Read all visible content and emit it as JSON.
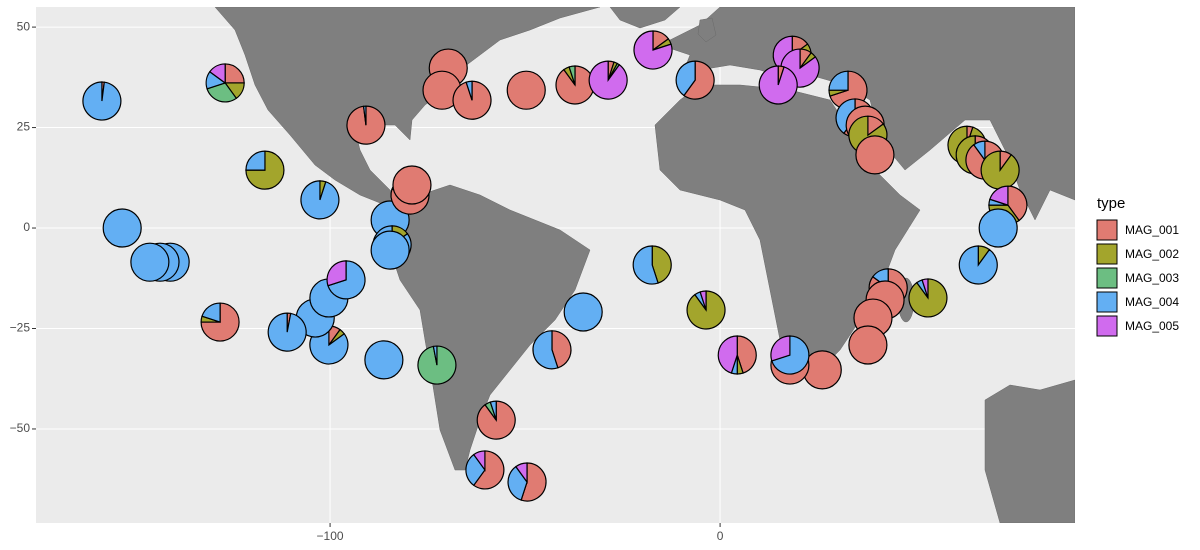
{
  "chart_data": {
    "type": "scatterpie",
    "legend_title": "type",
    "xlim": [
      -175.4,
      91
    ],
    "ylim": [
      -73.4,
      55
    ],
    "xticks": [
      {
        "value": -100,
        "label": "−100"
      },
      0
    ],
    "yticks": [
      {
        "value": -50,
        "label": "−50"
      },
      {
        "value": -25,
        "label": "−25"
      },
      0,
      25,
      50
    ],
    "grid": true,
    "legend": "right",
    "x": [
      -158.5,
      -126.9,
      -116.7,
      -90.8,
      -69.7,
      -71.3,
      -63.6,
      -49.7,
      -37.2,
      -28.7,
      -17.2,
      -6.4,
      18.5,
      20.5,
      14.9,
      32.8,
      34.6,
      37.2,
      37.9,
      39.7,
      63.3,
      65.4,
      67.9,
      71.8,
      73.8,
      71.3,
      66.2,
      53.3,
      43.1,
      42.3,
      39.2,
      37.9,
      26.2,
      17.9,
      17.9,
      4.4,
      -3.6,
      -17.4,
      -35.1,
      -43.1,
      -57.4,
      -60.3,
      -49.5,
      -72.6,
      -86.2,
      -100.3,
      -103.8,
      -100.3,
      -95.9,
      -111,
      -128.2,
      -141,
      -143.6,
      -146.2,
      -153.3,
      -102.6,
      -84.6,
      -84.1,
      -84.6,
      -79.5,
      -79
    ],
    "y": [
      31.6,
      36.1,
      14.4,
      25.6,
      39.8,
      34.3,
      31.8,
      34.3,
      35.6,
      36.8,
      44.3,
      36.8,
      43,
      39.8,
      35.6,
      34.3,
      27.4,
      25.6,
      23.1,
      18.2,
      20.6,
      18.2,
      16.9,
      14.4,
      5.7,
      0,
      -9.2,
      -17.4,
      -14.9,
      -17.9,
      -22.4,
      -29.1,
      -35.3,
      -34.1,
      -31.6,
      -31.6,
      -20.4,
      -9.2,
      -20.9,
      -30.3,
      -47.8,
      -60.2,
      -63.2,
      -34.1,
      -32.8,
      -29.1,
      -22.4,
      -17.4,
      -12.9,
      -25.9,
      -23.4,
      -8.5,
      -8.5,
      -8.5,
      0,
      7,
      2,
      -4.2,
      -5.5,
      8.2,
      10.7
    ],
    "series": [
      {
        "name": "MAG_001",
        "color": "#E07B72",
        "values": [
          2,
          25,
          0,
          98,
          100,
          100,
          95,
          100,
          90,
          5,
          15,
          60,
          15,
          10,
          5,
          70,
          60,
          100,
          15,
          100,
          5,
          20,
          90,
          10,
          40,
          0,
          0,
          0,
          85,
          100,
          100,
          100,
          100,
          100,
          0,
          45,
          0,
          0,
          0,
          45,
          90,
          60,
          55,
          0,
          0,
          10,
          0,
          0,
          0,
          3,
          75,
          0,
          0,
          0,
          0,
          0,
          0,
          0,
          0,
          80,
          100
        ]
      },
      {
        "name": "MAG_002",
        "color": "#A3A52C",
        "values": [
          0,
          15,
          75,
          0,
          0,
          0,
          0,
          0,
          5,
          3,
          5,
          0,
          10,
          5,
          0,
          5,
          0,
          0,
          85,
          0,
          95,
          80,
          0,
          90,
          35,
          0,
          10,
          90,
          0,
          0,
          0,
          0,
          0,
          0,
          0,
          5,
          90,
          45,
          0,
          0,
          0,
          0,
          0,
          0,
          0,
          5,
          0,
          0,
          0,
          0,
          5,
          0,
          0,
          0,
          0,
          5,
          0,
          15,
          0,
          20,
          0
        ]
      },
      {
        "name": "MAG_003",
        "color": "#6CBE82",
        "values": [
          0,
          30,
          0,
          0,
          0,
          0,
          0,
          0,
          5,
          2,
          0,
          0,
          0,
          0,
          0,
          0,
          0,
          0,
          0,
          0,
          0,
          0,
          0,
          0,
          0,
          0,
          0,
          0,
          0,
          0,
          0,
          0,
          0,
          0,
          0,
          0,
          0,
          0,
          0,
          0,
          5,
          0,
          0,
          97,
          0,
          0,
          0,
          0,
          0,
          0,
          0,
          0,
          0,
          0,
          0,
          0,
          0,
          0,
          0,
          0,
          0
        ]
      },
      {
        "name": "MAG_004",
        "color": "#63AFF3",
        "values": [
          98,
          15,
          25,
          2,
          0,
          0,
          5,
          0,
          0,
          0,
          0,
          40,
          5,
          0,
          0,
          25,
          40,
          0,
          0,
          0,
          0,
          0,
          10,
          0,
          5,
          100,
          90,
          5,
          15,
          0,
          0,
          0,
          0,
          0,
          70,
          5,
          5,
          55,
          95,
          55,
          5,
          30,
          35,
          3,
          98,
          85,
          100,
          100,
          70,
          97,
          20,
          100,
          100,
          100,
          95,
          95,
          100,
          85,
          100,
          0,
          0
        ]
      },
      {
        "name": "MAG_005",
        "color": "#D06BEE",
        "values": [
          0,
          15,
          0,
          0,
          0,
          0,
          0,
          0,
          0,
          90,
          80,
          0,
          70,
          85,
          95,
          0,
          0,
          0,
          0,
          0,
          0,
          0,
          0,
          0,
          20,
          0,
          0,
          5,
          0,
          0,
          0,
          0,
          0,
          0,
          30,
          45,
          5,
          0,
          0,
          0,
          0,
          10,
          10,
          0,
          0,
          0,
          0,
          0,
          30,
          0,
          0,
          0,
          0,
          0,
          0,
          0,
          0,
          0,
          0,
          0,
          0
        ]
      }
    ]
  }
}
